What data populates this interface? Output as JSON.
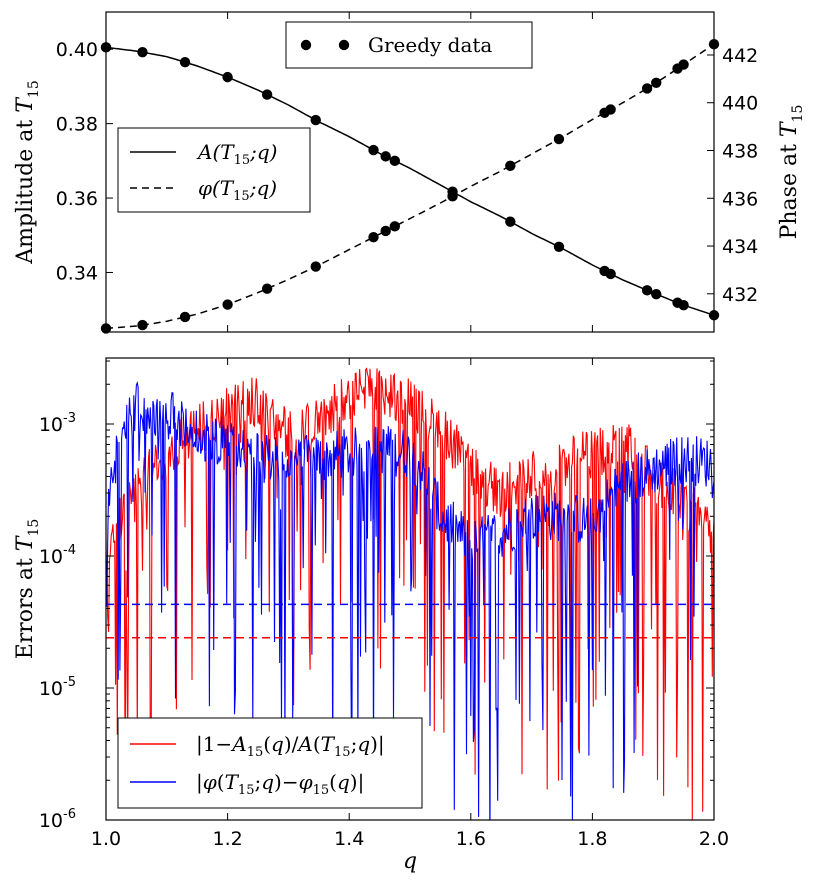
{
  "chart_data": [
    {
      "type": "line",
      "panel": "top",
      "xlim": [
        1.0,
        2.0
      ],
      "ylim_left": [
        0.324,
        0.41
      ],
      "ylim_right": [
        430.4,
        443.8
      ],
      "ylabel_left": "Amplitude at T15",
      "ylabel_right": "Phase at T15",
      "left_ticks": [
        "0.34",
        "0.36",
        "0.38",
        "0.40"
      ],
      "left_tick_values": [
        0.34,
        0.36,
        0.38,
        0.4
      ],
      "right_ticks": [
        "432",
        "434",
        "436",
        "438",
        "440",
        "442"
      ],
      "right_tick_values": [
        432,
        434,
        436,
        438,
        440,
        442
      ],
      "legend_dots": "Greedy data",
      "legend_lines": [
        "A(T15;q)",
        "φ(T15;q)"
      ],
      "greedy_q": [
        1.0,
        1.06,
        1.13,
        1.2,
        1.265,
        1.345,
        1.44,
        1.46,
        1.475,
        1.57,
        1.665,
        1.745,
        1.82,
        1.83,
        1.89,
        1.905,
        1.94,
        1.95,
        2.0
      ],
      "series": [
        {
          "name": "A(T15;q)",
          "style": "solid",
          "axis": "left",
          "x": [
            1.0,
            1.05,
            1.1,
            1.15,
            1.2,
            1.25,
            1.3,
            1.35,
            1.4,
            1.45,
            1.5,
            1.55,
            1.6,
            1.65,
            1.7,
            1.75,
            1.8,
            1.85,
            1.9,
            1.95,
            2.0
          ],
          "y": [
            0.4005,
            0.3995,
            0.398,
            0.3955,
            0.3925,
            0.389,
            0.385,
            0.3805,
            0.3765,
            0.372,
            0.368,
            0.3635,
            0.359,
            0.355,
            0.3505,
            0.3465,
            0.342,
            0.338,
            0.3345,
            0.3312,
            0.3285
          ]
        },
        {
          "name": "φ(T15;q)",
          "style": "dashed",
          "axis": "right",
          "x": [
            1.0,
            1.05,
            1.1,
            1.15,
            1.2,
            1.25,
            1.3,
            1.35,
            1.4,
            1.45,
            1.5,
            1.55,
            1.6,
            1.65,
            1.7,
            1.75,
            1.8,
            1.85,
            1.9,
            1.95,
            2.0
          ],
          "y": [
            430.55,
            430.65,
            430.85,
            431.15,
            431.55,
            432.05,
            432.6,
            433.2,
            433.85,
            434.5,
            435.15,
            435.8,
            436.5,
            437.15,
            437.85,
            438.55,
            439.3,
            440.0,
            440.75,
            441.6,
            442.45
          ]
        }
      ]
    },
    {
      "type": "line",
      "panel": "bottom",
      "xlim": [
        1.0,
        2.0
      ],
      "ylim_log10": [
        -6,
        -2.5
      ],
      "ylabel": "Errors at T15",
      "xlabel": "q",
      "x_ticks": [
        "1.0",
        "1.2",
        "1.4",
        "1.6",
        "1.8",
        "2.0"
      ],
      "x_tick_values": [
        1.0,
        1.2,
        1.4,
        1.6,
        1.8,
        2.0
      ],
      "y_tick_exponents": [
        -3,
        -4,
        -5,
        -6
      ],
      "y_ticks": [
        "10^-3",
        "10^-4",
        "10^-5",
        "10^-6"
      ],
      "legend": [
        "|1−A15(q)/A(T15;q)|",
        "|φ(T15;q)−φ15(q)|"
      ],
      "series": [
        {
          "name": "|1−A15(q)/A(T15;q)|",
          "color": "#ff0000",
          "style": "noisy",
          "x": [
            1.0,
            1.05,
            1.1,
            1.15,
            1.2,
            1.25,
            1.3,
            1.35,
            1.4,
            1.45,
            1.5,
            1.55,
            1.6,
            1.65,
            1.7,
            1.75,
            1.8,
            1.85,
            1.9,
            1.95,
            2.0
          ],
          "y": [
            0.0001,
            0.0003,
            0.0006,
            0.0009,
            0.0012,
            0.0015,
            0.0008,
            0.0011,
            0.0016,
            0.0018,
            0.0014,
            0.0009,
            0.00045,
            0.0003,
            0.0004,
            0.0005,
            0.0006,
            0.0007,
            0.0004,
            0.00025,
            0.00015
          ]
        },
        {
          "name": "|φ(T15;q)−φ15(q)|",
          "color": "#0000ff",
          "style": "noisy",
          "x": [
            1.0,
            1.05,
            1.1,
            1.15,
            1.2,
            1.25,
            1.3,
            1.35,
            1.4,
            1.45,
            1.5,
            1.55,
            1.6,
            1.65,
            1.7,
            1.75,
            1.8,
            1.85,
            1.9,
            1.95,
            2.0
          ],
          "y": [
            0.0001,
            0.00135,
            0.0012,
            0.0009,
            0.0007,
            0.00055,
            0.0005,
            0.00055,
            0.0006,
            0.00065,
            0.0006,
            0.0002,
            0.00012,
            0.00015,
            0.0002,
            0.0002,
            0.00018,
            0.00035,
            0.00045,
            0.00055,
            0.0005
          ]
        },
        {
          "name": "red-threshold",
          "color": "#ff0000",
          "style": "dashed",
          "x": [
            1.0,
            2.0
          ],
          "y": [
            2.4e-05,
            2.4e-05
          ]
        },
        {
          "name": "blue-threshold",
          "color": "#0000ff",
          "style": "dashed",
          "x": [
            1.0,
            2.0
          ],
          "y": [
            4.3e-05,
            4.3e-05
          ]
        }
      ]
    }
  ]
}
